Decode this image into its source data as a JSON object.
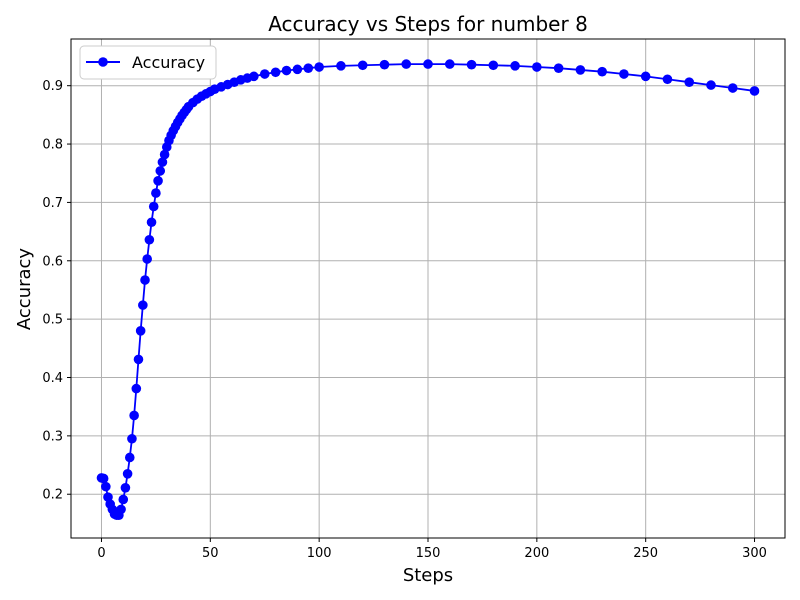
{
  "chart_data": {
    "type": "line",
    "title": "Accuracy vs Steps for number 8",
    "xlabel": "Steps",
    "ylabel": "Accuracy",
    "xlim": [
      -14,
      314
    ],
    "ylim": [
      0.125,
      0.98
    ],
    "xticks": [
      0,
      50,
      100,
      150,
      200,
      250,
      300
    ],
    "yticks": [
      0.2,
      0.3,
      0.4,
      0.5,
      0.6,
      0.7,
      0.8,
      0.9
    ],
    "grid": true,
    "legend_position": "top-left",
    "series": [
      {
        "name": "Accuracy",
        "color": "#0000ff",
        "marker": "circle",
        "points": [
          [
            0,
            0.228
          ],
          [
            1,
            0.227
          ],
          [
            2,
            0.213
          ],
          [
            3,
            0.195
          ],
          [
            4,
            0.183
          ],
          [
            5,
            0.174
          ],
          [
            6,
            0.166
          ],
          [
            7,
            0.164
          ],
          [
            8,
            0.164
          ],
          [
            9,
            0.174
          ],
          [
            10,
            0.191
          ],
          [
            11,
            0.211
          ],
          [
            12,
            0.235
          ],
          [
            13,
            0.263
          ],
          [
            14,
            0.295
          ],
          [
            15,
            0.335
          ],
          [
            16,
            0.381
          ],
          [
            17,
            0.431
          ],
          [
            18,
            0.48
          ],
          [
            19,
            0.524
          ],
          [
            20,
            0.567
          ],
          [
            21,
            0.603
          ],
          [
            22,
            0.636
          ],
          [
            23,
            0.666
          ],
          [
            24,
            0.693
          ],
          [
            25,
            0.716
          ],
          [
            26,
            0.737
          ],
          [
            27,
            0.754
          ],
          [
            28,
            0.769
          ],
          [
            29,
            0.782
          ],
          [
            30,
            0.795
          ],
          [
            31,
            0.806
          ],
          [
            32,
            0.815
          ],
          [
            33,
            0.823
          ],
          [
            34,
            0.83
          ],
          [
            35,
            0.837
          ],
          [
            36,
            0.843
          ],
          [
            37,
            0.849
          ],
          [
            38,
            0.854
          ],
          [
            39,
            0.859
          ],
          [
            40,
            0.864
          ],
          [
            42,
            0.871
          ],
          [
            44,
            0.877
          ],
          [
            46,
            0.882
          ],
          [
            48,
            0.886
          ],
          [
            50,
            0.89
          ],
          [
            52,
            0.894
          ],
          [
            55,
            0.898
          ],
          [
            58,
            0.902
          ],
          [
            61,
            0.906
          ],
          [
            64,
            0.91
          ],
          [
            67,
            0.913
          ],
          [
            70,
            0.916
          ],
          [
            75,
            0.92
          ],
          [
            80,
            0.923
          ],
          [
            85,
            0.926
          ],
          [
            90,
            0.928
          ],
          [
            95,
            0.93
          ],
          [
            100,
            0.932
          ],
          [
            110,
            0.934
          ],
          [
            120,
            0.935
          ],
          [
            130,
            0.936
          ],
          [
            140,
            0.937
          ],
          [
            150,
            0.937
          ],
          [
            160,
            0.937
          ],
          [
            170,
            0.936
          ],
          [
            180,
            0.935
          ],
          [
            190,
            0.934
          ],
          [
            200,
            0.932
          ],
          [
            210,
            0.93
          ],
          [
            220,
            0.927
          ],
          [
            230,
            0.924
          ],
          [
            240,
            0.92
          ],
          [
            250,
            0.916
          ],
          [
            260,
            0.911
          ],
          [
            270,
            0.906
          ],
          [
            280,
            0.901
          ],
          [
            290,
            0.896
          ],
          [
            300,
            0.891
          ]
        ]
      }
    ]
  }
}
